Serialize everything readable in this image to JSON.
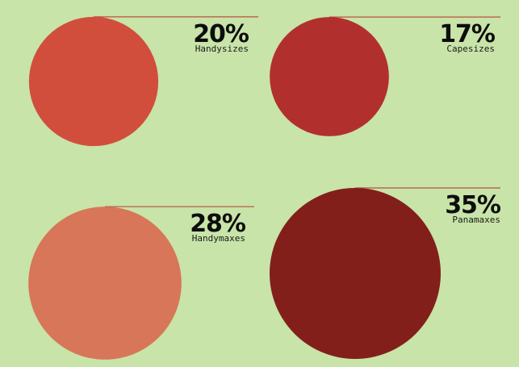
{
  "chart_data": {
    "type": "bubble",
    "categories": [
      "Handysizes",
      "Capesizes",
      "Handymaxes",
      "Panamaxes"
    ],
    "values": [
      20,
      17,
      28,
      35
    ],
    "value_labels": [
      "20%",
      "17%",
      "28%",
      "35%"
    ],
    "unit": "%",
    "colors": [
      "#d24e3c",
      "#b1302d",
      "#d87659",
      "#831f1b"
    ],
    "leader_line_color": "#b8503f",
    "background": "#c8e4a8",
    "grid": false,
    "legend": "none"
  }
}
